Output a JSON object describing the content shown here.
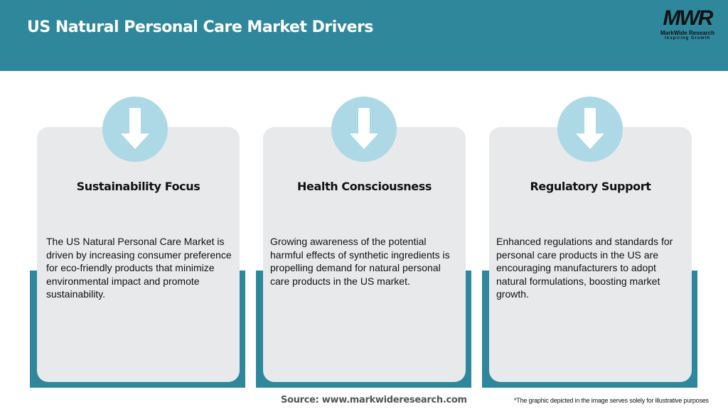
{
  "header": {
    "title": "US Natural Personal Care Market Drivers"
  },
  "logo": {
    "mark": "MWR",
    "name": "MarkWide Research",
    "tagline": "Inspiring Growth"
  },
  "cards": [
    {
      "icon": "arrow-down-icon",
      "title": "Sustainability Focus",
      "body": "The US Natural Personal Care Market is driven by increasing consumer preference for eco-friendly products that minimize environmental impact and promote sustainability."
    },
    {
      "icon": "arrow-down-icon",
      "title": "Health Consciousness",
      "body": "Growing awareness of the potential harmful effects of synthetic ingredients is propelling demand for natural personal care products in the US market."
    },
    {
      "icon": "arrow-down-icon",
      "title": "Regulatory Support",
      "body": "Enhanced regulations and standards for personal care products in the US are encouraging manufacturers to adopt natural formulations, boosting market growth."
    }
  ],
  "footer": {
    "source": "Source: www.markwideresearch.com",
    "note": "*The graphic depicted in the image serves solely for illustrative purposes"
  },
  "colors": {
    "accent": "#2f879c",
    "card": "#e8e9ea",
    "circle": "#acd9e5"
  }
}
